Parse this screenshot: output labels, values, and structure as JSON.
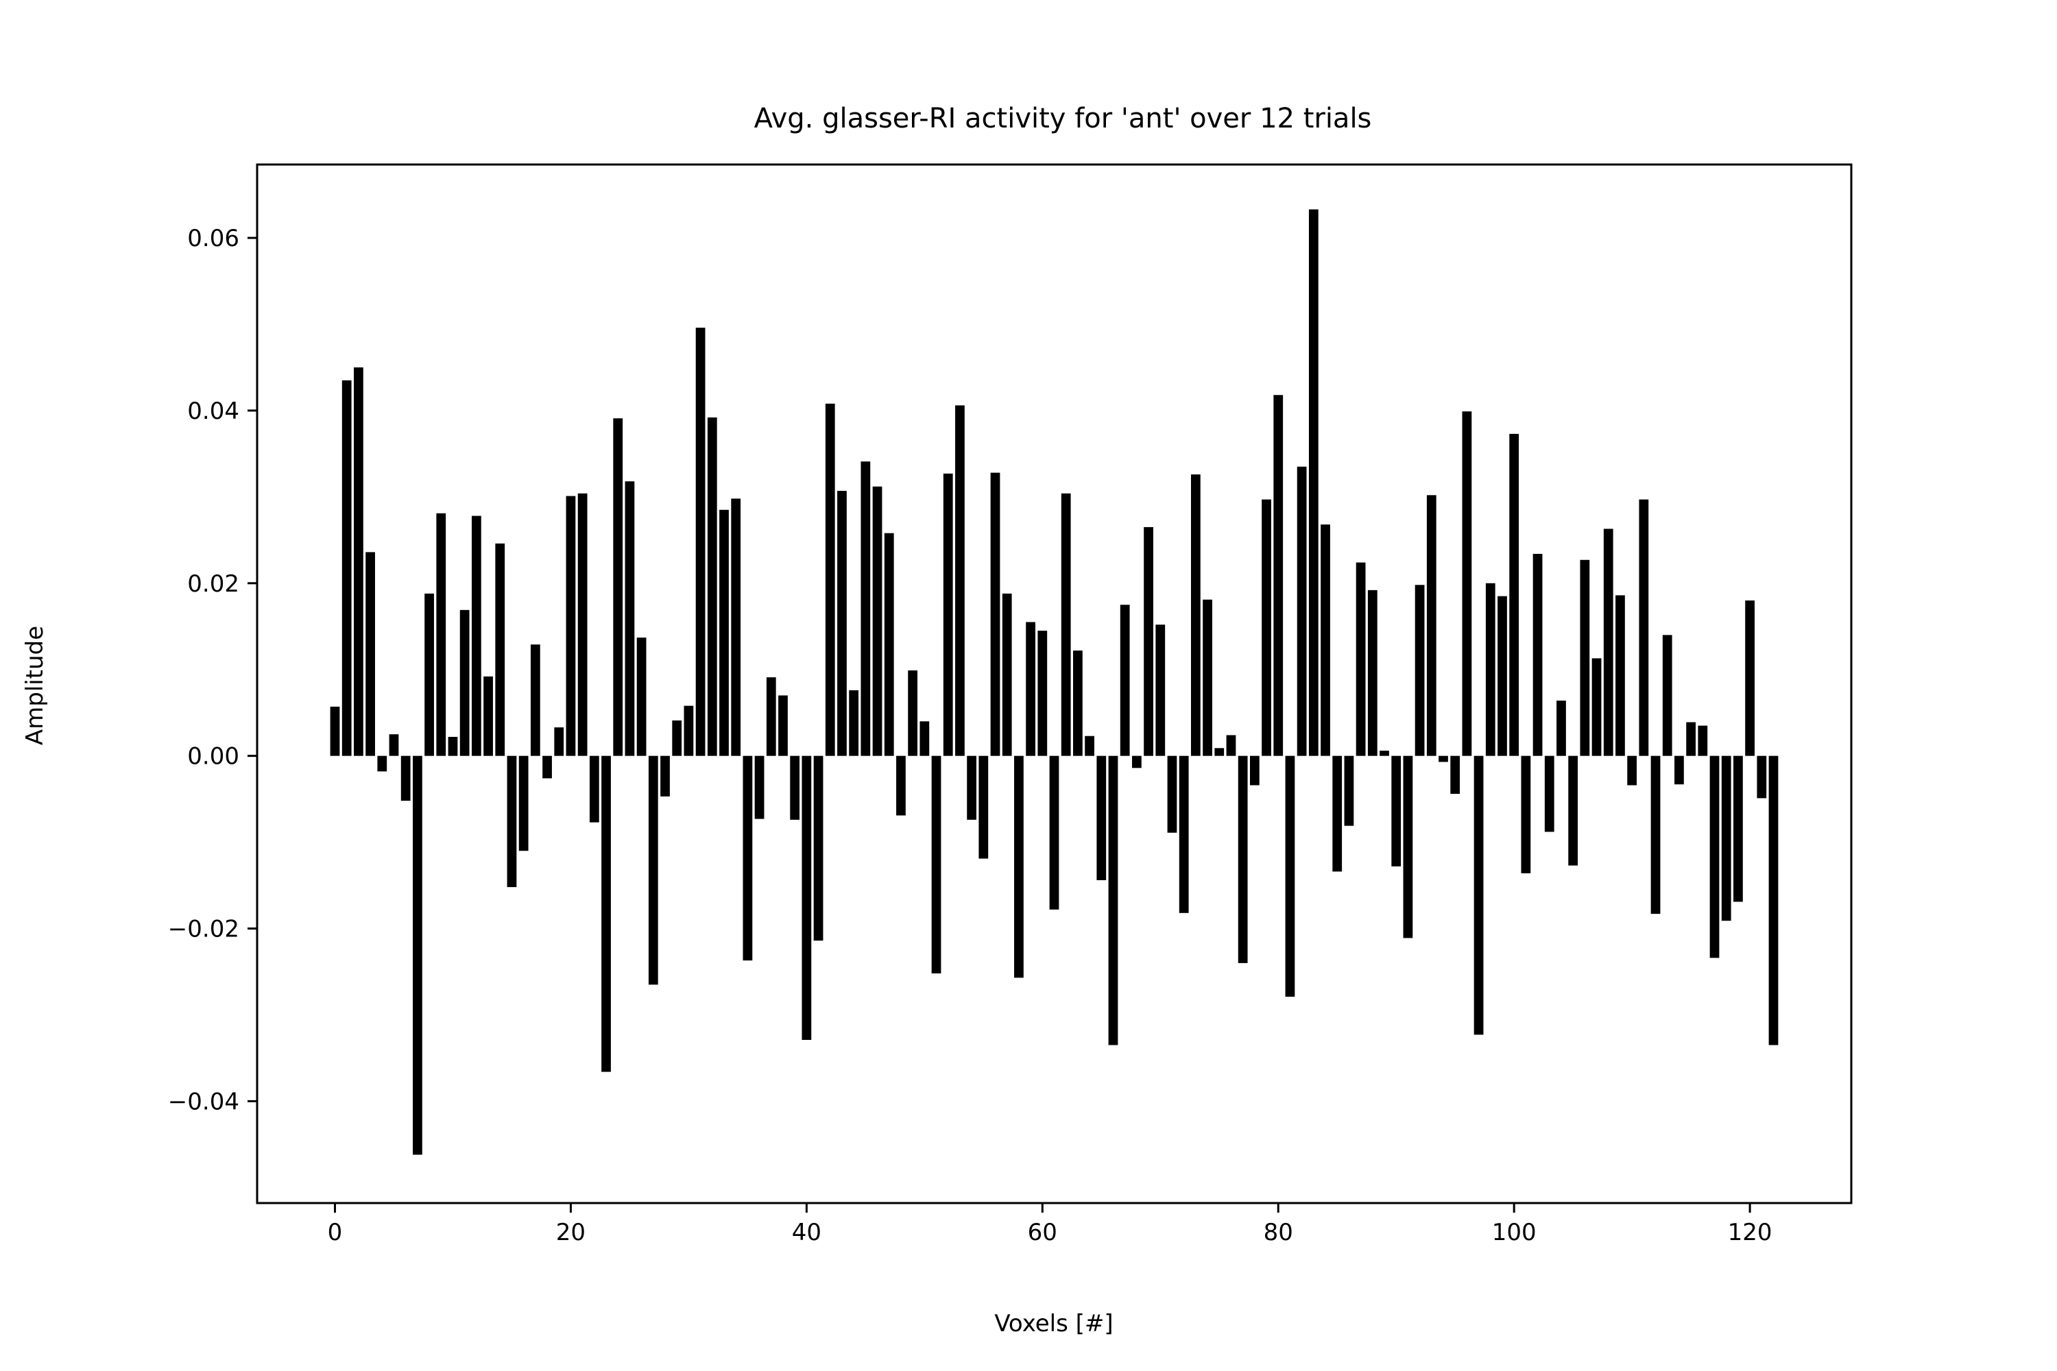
{
  "chart_data": {
    "type": "bar",
    "title": "Avg. glasser-RI activity for 'ant' over 12 trials",
    "xlabel": "Voxels [#]",
    "ylabel": "Amplitude",
    "xlim": [
      -6.6,
      128.6
    ],
    "ylim": [
      -0.0518,
      0.0685
    ],
    "xticks": [
      0,
      20,
      40,
      60,
      80,
      100,
      120
    ],
    "xtick_labels": [
      "0",
      "20",
      "40",
      "60",
      "80",
      "100",
      "120"
    ],
    "yticks": [
      -0.04,
      -0.02,
      0.0,
      0.02,
      0.04,
      0.06
    ],
    "ytick_labels": [
      "−0.04",
      "−0.02",
      "0.00",
      "0.02",
      "0.04",
      "0.06"
    ],
    "grid": false,
    "bar_color": "#000000",
    "x": [
      0,
      1,
      2,
      3,
      4,
      5,
      6,
      7,
      8,
      9,
      10,
      11,
      12,
      13,
      14,
      15,
      16,
      17,
      18,
      19,
      20,
      21,
      22,
      23,
      24,
      25,
      26,
      27,
      28,
      29,
      30,
      31,
      32,
      33,
      34,
      35,
      36,
      37,
      38,
      39,
      40,
      41,
      42,
      43,
      44,
      45,
      46,
      47,
      48,
      49,
      50,
      51,
      52,
      53,
      54,
      55,
      56,
      57,
      58,
      59,
      60,
      61,
      62,
      63,
      64,
      65,
      66,
      67,
      68,
      69,
      70,
      71,
      72,
      73,
      74,
      75,
      76,
      77,
      78,
      79,
      80,
      81,
      82,
      83,
      84,
      85,
      86,
      87,
      88,
      89,
      90,
      91,
      92,
      93,
      94,
      95,
      96,
      97,
      98,
      99,
      100,
      101,
      102,
      103,
      104,
      105,
      106,
      107,
      108,
      109,
      110,
      111,
      112,
      113,
      114,
      115,
      116,
      117,
      118,
      119,
      120,
      121,
      122
    ],
    "values": [
      0.0057,
      0.0435,
      0.045,
      0.0236,
      -0.0018,
      0.0025,
      -0.0052,
      -0.0462,
      0.0188,
      0.0281,
      0.0022,
      0.0169,
      0.0278,
      0.0092,
      0.0246,
      -0.0152,
      -0.011,
      0.0129,
      -0.0026,
      0.0033,
      0.0301,
      0.0304,
      -0.0077,
      -0.0366,
      0.0391,
      0.0318,
      0.0137,
      -0.0265,
      -0.0047,
      0.0041,
      0.0058,
      0.0496,
      0.0392,
      0.0285,
      0.0298,
      -0.0237,
      -0.0073,
      0.0091,
      0.007,
      -0.0074,
      -0.0329,
      -0.0214,
      0.0408,
      0.0307,
      0.0076,
      0.0341,
      0.0312,
      0.0258,
      -0.0069,
      0.0099,
      0.004,
      -0.0252,
      0.0327,
      0.0406,
      -0.0074,
      -0.0119,
      0.0328,
      0.0188,
      -0.0257,
      0.0155,
      0.0145,
      -0.0178,
      0.0304,
      0.0122,
      0.0023,
      -0.0144,
      -0.0335,
      0.0175,
      -0.0014,
      0.0265,
      0.0152,
      -0.0089,
      -0.0182,
      0.0326,
      0.0181,
      0.0009,
      0.0024,
      -0.024,
      -0.0034,
      0.0297,
      0.0418,
      -0.0279,
      0.0335,
      0.0633,
      0.0268,
      -0.0134,
      -0.0081,
      0.0224,
      0.0192,
      0.0006,
      -0.0128,
      -0.0211,
      0.0198,
      0.0302,
      -0.0007,
      -0.0044,
      0.0399,
      -0.0323,
      0.02,
      0.0185,
      0.0373,
      -0.0136,
      0.0234,
      -0.0088,
      0.0064,
      -0.0127,
      0.0227,
      0.0113,
      0.0263,
      0.0186,
      -0.0034,
      0.0297,
      -0.0183,
      0.014,
      -0.0033,
      0.0039,
      0.0035,
      -0.0234,
      -0.0191,
      -0.0169,
      0.018,
      -0.0049,
      -0.0335
    ]
  }
}
